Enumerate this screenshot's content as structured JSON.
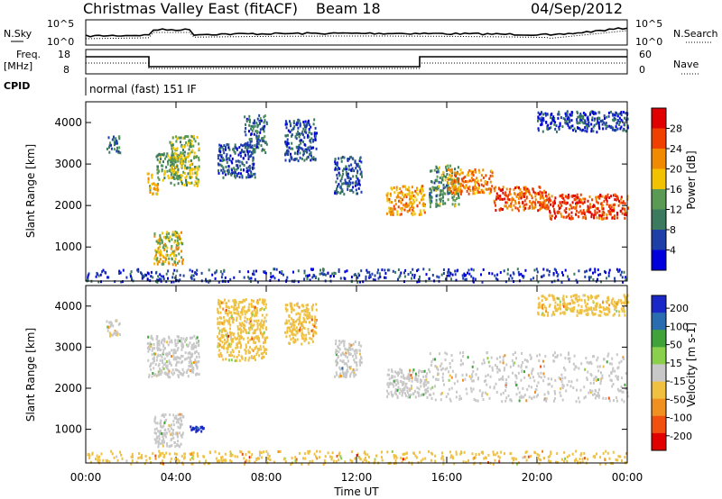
{
  "header": {
    "title": "Christmas Valley East (fitACF)",
    "beam": "Beam 18",
    "date": "04/Sep/2012"
  },
  "status": {
    "nsky_label": "N.Sky",
    "nsearch_label": "N.Search",
    "freq_label_1": "Freq.",
    "freq_label_2": "[MHz]",
    "nave_label": "Nave",
    "cpid_label": "CPID",
    "cpid_text": "normal (fast) 151 IF",
    "noise_ticks_left": [
      "10^5",
      "10^0"
    ],
    "noise_ticks_right": [
      "10^5",
      "10^0"
    ],
    "freq_ticks": [
      "18",
      "8"
    ],
    "nave_ticks": [
      "60",
      "0"
    ]
  },
  "colors": {
    "power_scale": [
      "#0000dc",
      "#1e3ea8",
      "#3b7a5e",
      "#5a9a55",
      "#f2c200",
      "#f08a00",
      "#f04000",
      "#e00000"
    ],
    "velocity_scale": [
      "#1a28c8",
      "#2a6cb0",
      "#3fa33a",
      "#8ad04c",
      "#c8c8c8",
      "#f0c040",
      "#f09020",
      "#f05010",
      "#e00000"
    ]
  },
  "chart_data": [
    {
      "type": "heatmap",
      "name": "power-panel",
      "ylabel": "Slant Range [km]",
      "yticks": [
        "1000",
        "2000",
        "3000",
        "4000"
      ],
      "ylim": [
        180,
        4500
      ],
      "xlim": [
        0,
        24
      ],
      "colorbar_label": "Power [dB]",
      "colorbar_ticks": [
        "4",
        "8",
        "12",
        "16",
        "20",
        "24",
        "28"
      ],
      "clim": [
        0,
        32
      ],
      "features": [
        {
          "t0": 0.9,
          "t1": 1.5,
          "r0": 3300,
          "r1": 3700,
          "value": 9
        },
        {
          "t0": 2.7,
          "t1": 3.2,
          "r0": 2300,
          "r1": 2800,
          "value": 19
        },
        {
          "t0": 3.1,
          "t1": 4.2,
          "r0": 2600,
          "r1": 3300,
          "value": 13
        },
        {
          "t0": 3.7,
          "t1": 5.0,
          "r0": 2500,
          "r1": 3700,
          "value": 15
        },
        {
          "t0": 3.0,
          "t1": 4.3,
          "r0": 600,
          "r1": 1400,
          "value": 17
        },
        {
          "t0": 5.8,
          "t1": 7.5,
          "r0": 2700,
          "r1": 3500,
          "value": 6
        },
        {
          "t0": 7.0,
          "t1": 8.0,
          "r0": 3300,
          "r1": 4200,
          "value": 8
        },
        {
          "t0": 8.8,
          "t1": 10.2,
          "r0": 3100,
          "r1": 4100,
          "value": 7
        },
        {
          "t0": 11.0,
          "t1": 12.2,
          "r0": 2300,
          "r1": 3200,
          "value": 7
        },
        {
          "t0": 13.3,
          "t1": 15.0,
          "r0": 1800,
          "r1": 2500,
          "value": 21
        },
        {
          "t0": 15.2,
          "t1": 16.5,
          "r0": 2000,
          "r1": 3000,
          "value": 12
        },
        {
          "t0": 16.0,
          "t1": 18.0,
          "r0": 2300,
          "r1": 2900,
          "value": 23
        },
        {
          "t0": 18.0,
          "t1": 20.5,
          "r0": 1900,
          "r1": 2500,
          "value": 25
        },
        {
          "t0": 20.5,
          "t1": 24.0,
          "r0": 1700,
          "r1": 2300,
          "value": 27
        },
        {
          "t0": 20.0,
          "t1": 24.0,
          "r0": 3800,
          "r1": 4300,
          "value": 6
        },
        {
          "t0": 0.0,
          "t1": 24.0,
          "r0": 180,
          "r1": 500,
          "value": 5
        }
      ]
    },
    {
      "type": "heatmap",
      "name": "velocity-panel",
      "ylabel": "Slant Range [km]",
      "yticks": [
        "1000",
        "2000",
        "3000",
        "4000"
      ],
      "ylim": [
        180,
        4500
      ],
      "xlim": [
        0,
        24
      ],
      "xlabel": "Time UT",
      "xticks": [
        "00:00",
        "04:00",
        "08:00",
        "12:00",
        "16:00",
        "20:00",
        "00:00"
      ],
      "colorbar_label": "Velocity [m s-1]",
      "colorbar_ticks": [
        "200",
        "100",
        "50",
        "15",
        "-15",
        "-50",
        "-100",
        "-200"
      ],
      "clim": [
        -250,
        250
      ],
      "features": [
        {
          "t0": 0.9,
          "t1": 1.5,
          "r0": 3300,
          "r1": 3700,
          "value": -20
        },
        {
          "t0": 2.7,
          "t1": 5.0,
          "r0": 2300,
          "r1": 3300,
          "value": 0
        },
        {
          "t0": 3.0,
          "t1": 4.3,
          "r0": 600,
          "r1": 1400,
          "value": 5
        },
        {
          "t0": 4.6,
          "t1": 5.2,
          "r0": 950,
          "r1": 1100,
          "value": 220
        },
        {
          "t0": 5.8,
          "t1": 8.0,
          "r0": 2700,
          "r1": 4200,
          "value": -60
        },
        {
          "t0": 8.8,
          "t1": 10.2,
          "r0": 3100,
          "r1": 4100,
          "value": -40
        },
        {
          "t0": 11.0,
          "t1": 12.2,
          "r0": 2300,
          "r1": 3200,
          "value": 0
        },
        {
          "t0": 13.3,
          "t1": 15.2,
          "r0": 1800,
          "r1": 2500,
          "value": 0
        },
        {
          "t0": 15.2,
          "t1": 24.0,
          "r0": 1700,
          "r1": 2900,
          "value": 0
        },
        {
          "t0": 20.0,
          "t1": 24.0,
          "r0": 3800,
          "r1": 4300,
          "value": -40
        },
        {
          "t0": 0.0,
          "t1": 24.0,
          "r0": 180,
          "r1": 500,
          "value": -60
        }
      ]
    }
  ]
}
